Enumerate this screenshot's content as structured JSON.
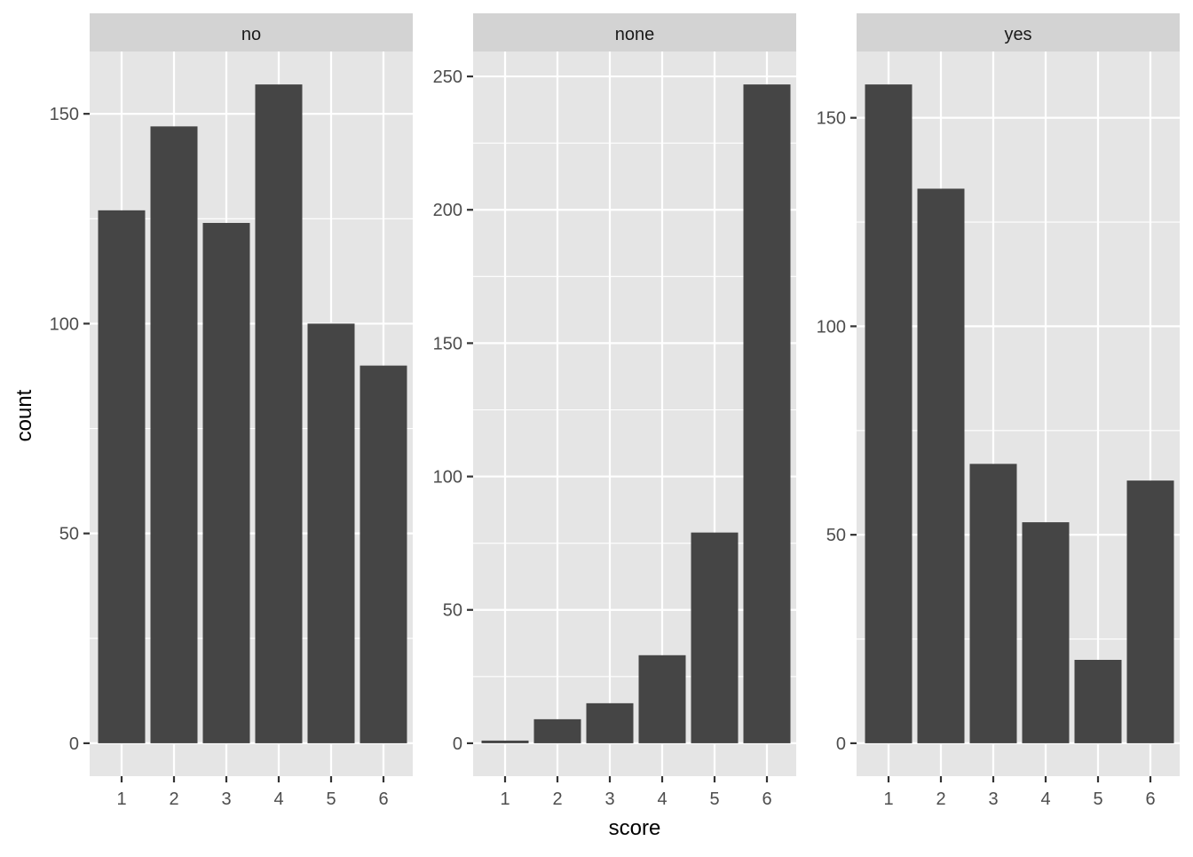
{
  "chart_data": {
    "type": "bar",
    "xlabel": "score",
    "ylabel": "count",
    "categories": [
      "1",
      "2",
      "3",
      "4",
      "5",
      "6"
    ],
    "facets": [
      {
        "name": "no",
        "values": [
          127,
          147,
          124,
          157,
          100,
          90
        ],
        "ylim": [
          -7.85,
          164.85
        ],
        "y_ticks": [
          0,
          50,
          100,
          150
        ],
        "y_tick_labels": [
          "0",
          "50",
          "100",
          "150"
        ]
      },
      {
        "name": "none",
        "values": [
          1,
          9,
          15,
          33,
          79,
          247
        ],
        "ylim": [
          -12.35,
          259.35
        ],
        "y_ticks": [
          0,
          50,
          100,
          150,
          200,
          250
        ],
        "y_tick_labels": [
          "0",
          "50",
          "100",
          "150",
          "200",
          "250"
        ]
      },
      {
        "name": "yes",
        "values": [
          158,
          133,
          67,
          53,
          20,
          63
        ],
        "ylim": [
          -7.9,
          165.9
        ],
        "y_ticks": [
          0,
          50,
          100,
          150
        ],
        "y_tick_labels": [
          "0",
          "50",
          "100",
          "150"
        ]
      }
    ],
    "grid": true,
    "legend": "none",
    "colors": {
      "bar": "#454545",
      "panel_background": "#e5e5e5",
      "strip_background": "#d3d3d3",
      "grid": "#ffffff",
      "axis_text": "#4d4d4d",
      "title_text": "#000000",
      "strip_text": "#1a1a1a"
    }
  }
}
